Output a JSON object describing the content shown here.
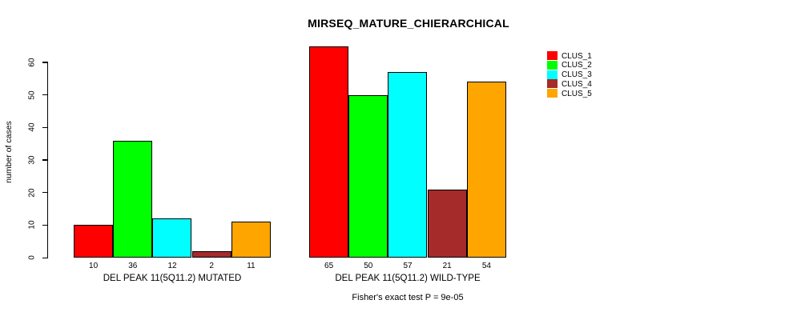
{
  "title": "MIRSEQ_MATURE_CHIERARCHICAL",
  "footer": "Fisher's exact test P = 9e-05",
  "y_axis": {
    "label": "number of cases",
    "ticks": [
      0,
      10,
      20,
      30,
      40,
      50,
      60
    ]
  },
  "legend": {
    "position": "top-right",
    "entries": [
      {
        "label": "CLUS_1",
        "color": "#FF0000"
      },
      {
        "label": "CLUS_2",
        "color": "#00FF00"
      },
      {
        "label": "CLUS_3",
        "color": "#00FFFF"
      },
      {
        "label": "CLUS_4",
        "color": "#A52A2A"
      },
      {
        "label": "CLUS_5",
        "color": "#FFA500"
      }
    ]
  },
  "chart_data": {
    "type": "bar",
    "title": "MIRSEQ_MATURE_CHIERARCHICAL",
    "xlabel": "",
    "ylabel": "number of cases",
    "ylim": [
      0,
      65
    ],
    "y_ticks": [
      0,
      10,
      20,
      30,
      40,
      50,
      60
    ],
    "grid": false,
    "legend_position": "top-right",
    "bar_value_labels": true,
    "series": [
      {
        "name": "CLUS_1",
        "color": "#FF0000"
      },
      {
        "name": "CLUS_2",
        "color": "#00FF00"
      },
      {
        "name": "CLUS_3",
        "color": "#00FFFF"
      },
      {
        "name": "CLUS_4",
        "color": "#A52A2A"
      },
      {
        "name": "CLUS_5",
        "color": "#FFA500"
      }
    ],
    "groups": [
      {
        "label": "DEL PEAK 11(5Q11.2) MUTATED",
        "values": [
          10,
          36,
          12,
          2,
          11
        ]
      },
      {
        "label": "DEL PEAK 11(5Q11.2) WILD-TYPE",
        "values": [
          65,
          50,
          57,
          21,
          54
        ]
      }
    ],
    "annotation": "Fisher's exact test P = 9e-05"
  }
}
